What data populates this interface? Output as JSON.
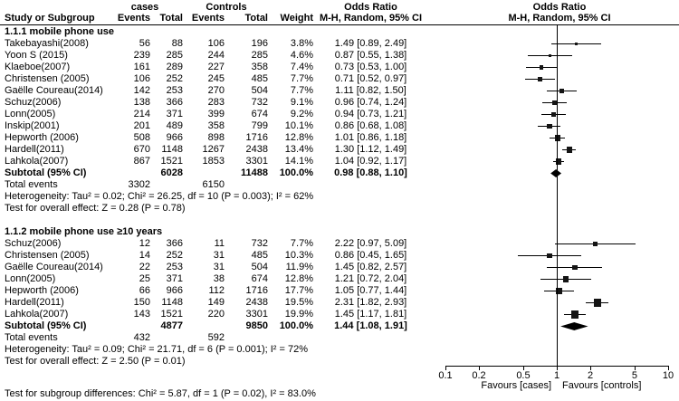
{
  "header": {
    "cases_group": "cases",
    "controls_group": "Controls",
    "study": "Study or Subgroup",
    "events": "Events",
    "total": "Total",
    "weight": "Weight",
    "or_title": "Odds Ratio",
    "or_subtitle": "M-H, Random, 95% CI"
  },
  "labels": {
    "total_events": "Total events",
    "subtotal": "Subtotal (95% CI)"
  },
  "chart_data": {
    "type": "forest",
    "x_axis": {
      "scale": "log",
      "range": [
        0.1,
        10
      ],
      "ticks": [
        0.1,
        0.2,
        0.5,
        1,
        2,
        5,
        10
      ],
      "favours_left": "Favours [cases]",
      "favours_right": "Favours [controls]"
    },
    "subgroups": [
      {
        "title": "1.1.1 mobile phone use",
        "studies": [
          {
            "name": "Takebayashi(2008)",
            "events_cases": 56,
            "total_cases": 88,
            "events_controls": 106,
            "total_controls": 196,
            "weight": "3.8%",
            "or": 1.49,
            "ci_low": 0.89,
            "ci_high": 2.49,
            "or_text": "1.49 [0.89, 2.49]"
          },
          {
            "name": "Yoon S (2015)",
            "events_cases": 239,
            "total_cases": 285,
            "events_controls": 244,
            "total_controls": 285,
            "weight": "4.6%",
            "or": 0.87,
            "ci_low": 0.55,
            "ci_high": 1.38,
            "or_text": "0.87 [0.55, 1.38]"
          },
          {
            "name": "Klaeboe(2007)",
            "events_cases": 161,
            "total_cases": 289,
            "events_controls": 227,
            "total_controls": 358,
            "weight": "7.4%",
            "or": 0.73,
            "ci_low": 0.53,
            "ci_high": 1.0,
            "or_text": "0.73 [0.53, 1.00]"
          },
          {
            "name": "Christensen (2005)",
            "events_cases": 106,
            "total_cases": 252,
            "events_controls": 245,
            "total_controls": 485,
            "weight": "7.7%",
            "or": 0.71,
            "ci_low": 0.52,
            "ci_high": 0.97,
            "or_text": "0.71 [0.52, 0.97]"
          },
          {
            "name": "Gaëlle Coureau(2014)",
            "events_cases": 142,
            "total_cases": 253,
            "events_controls": 270,
            "total_controls": 504,
            "weight": "7.7%",
            "or": 1.11,
            "ci_low": 0.82,
            "ci_high": 1.5,
            "or_text": "1.11 [0.82, 1.50]"
          },
          {
            "name": "Schuz(2006)",
            "events_cases": 138,
            "total_cases": 366,
            "events_controls": 283,
            "total_controls": 732,
            "weight": "9.1%",
            "or": 0.96,
            "ci_low": 0.74,
            "ci_high": 1.24,
            "or_text": "0.96 [0.74, 1.24]"
          },
          {
            "name": "Lonn(2005)",
            "events_cases": 214,
            "total_cases": 371,
            "events_controls": 399,
            "total_controls": 674,
            "weight": "9.2%",
            "or": 0.94,
            "ci_low": 0.73,
            "ci_high": 1.21,
            "or_text": "0.94 [0.73, 1.21]"
          },
          {
            "name": "Inskip(2001)",
            "events_cases": 201,
            "total_cases": 489,
            "events_controls": 358,
            "total_controls": 799,
            "weight": "10.1%",
            "or": 0.86,
            "ci_low": 0.68,
            "ci_high": 1.08,
            "or_text": "0.86 [0.68, 1.08]"
          },
          {
            "name": "Hepworth (2006)",
            "events_cases": 508,
            "total_cases": 966,
            "events_controls": 898,
            "total_controls": 1716,
            "weight": "12.8%",
            "or": 1.01,
            "ci_low": 0.86,
            "ci_high": 1.18,
            "or_text": "1.01 [0.86, 1.18]"
          },
          {
            "name": "Hardell(2011)",
            "events_cases": 670,
            "total_cases": 1148,
            "events_controls": 1267,
            "total_controls": 2438,
            "weight": "13.4%",
            "or": 1.3,
            "ci_low": 1.12,
            "ci_high": 1.49,
            "or_text": "1.30 [1.12, 1.49]"
          },
          {
            "name": "Lahkola(2007)",
            "events_cases": 867,
            "total_cases": 1521,
            "events_controls": 1853,
            "total_controls": 3301,
            "weight": "14.1%",
            "or": 1.04,
            "ci_low": 0.92,
            "ci_high": 1.17,
            "or_text": "1.04 [0.92, 1.17]"
          }
        ],
        "subtotal": {
          "total_cases": 6028,
          "total_controls": 11488,
          "weight": "100.0%",
          "or": 0.98,
          "ci_low": 0.88,
          "ci_high": 1.1,
          "or_text": "0.98 [0.88, 1.10]"
        },
        "total_events_cases": 3302,
        "total_events_controls": 6150,
        "heterogeneity": "Heterogeneity: Tau² = 0.02; Chi² = 26.25, df = 10 (P = 0.003); I² = 62%",
        "overall_effect": "Test for overall effect: Z = 0.28 (P = 0.78)"
      },
      {
        "title": "1.1.2 mobile phone use ≥10 years",
        "studies": [
          {
            "name": "Schuz(2006)",
            "events_cases": 12,
            "total_cases": 366,
            "events_controls": 11,
            "total_controls": 732,
            "weight": "7.7%",
            "or": 2.22,
            "ci_low": 0.97,
            "ci_high": 5.09,
            "or_text": "2.22 [0.97, 5.09]"
          },
          {
            "name": "Christensen (2005)",
            "events_cases": 14,
            "total_cases": 252,
            "events_controls": 31,
            "total_controls": 485,
            "weight": "10.3%",
            "or": 0.86,
            "ci_low": 0.45,
            "ci_high": 1.65,
            "or_text": "0.86 [0.45, 1.65]"
          },
          {
            "name": "Gaëlle Coureau(2014)",
            "events_cases": 22,
            "total_cases": 253,
            "events_controls": 31,
            "total_controls": 504,
            "weight": "11.9%",
            "or": 1.45,
            "ci_low": 0.82,
            "ci_high": 2.57,
            "or_text": "1.45 [0.82, 2.57]"
          },
          {
            "name": "Lonn(2005)",
            "events_cases": 25,
            "total_cases": 371,
            "events_controls": 38,
            "total_controls": 674,
            "weight": "12.8%",
            "or": 1.21,
            "ci_low": 0.72,
            "ci_high": 2.04,
            "or_text": "1.21 [0.72, 2.04]"
          },
          {
            "name": "Hepworth (2006)",
            "events_cases": 66,
            "total_cases": 966,
            "events_controls": 112,
            "total_controls": 1716,
            "weight": "17.7%",
            "or": 1.05,
            "ci_low": 0.77,
            "ci_high": 1.44,
            "or_text": "1.05 [0.77, 1.44]"
          },
          {
            "name": "Hardell(2011)",
            "events_cases": 150,
            "total_cases": 1148,
            "events_controls": 149,
            "total_controls": 2438,
            "weight": "19.5%",
            "or": 2.31,
            "ci_low": 1.82,
            "ci_high": 2.93,
            "or_text": "2.31 [1.82, 2.93]"
          },
          {
            "name": "Lahkola(2007)",
            "events_cases": 143,
            "total_cases": 1521,
            "events_controls": 220,
            "total_controls": 3301,
            "weight": "19.9%",
            "or": 1.45,
            "ci_low": 1.17,
            "ci_high": 1.81,
            "or_text": "1.45 [1.17, 1.81]"
          }
        ],
        "subtotal": {
          "total_cases": 4877,
          "total_controls": 9850,
          "weight": "100.0%",
          "or": 1.44,
          "ci_low": 1.08,
          "ci_high": 1.91,
          "or_text": "1.44 [1.08, 1.91]"
        },
        "total_events_cases": 432,
        "total_events_controls": 592,
        "heterogeneity": "Heterogeneity: Tau² = 0.09; Chi² = 21.71, df = 6 (P = 0.001); I² = 72%",
        "overall_effect": "Test for overall effect: Z = 2.50 (P = 0.01)"
      }
    ],
    "footer": "Test for subgroup differences: Chi² = 5.87, df = 1 (P = 0.02), I² = 83.0%"
  }
}
